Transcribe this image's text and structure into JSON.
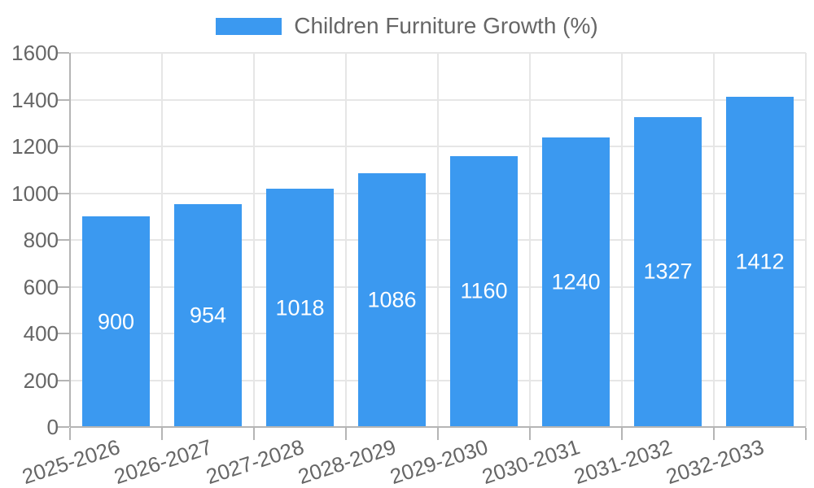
{
  "chart_data": {
    "type": "bar",
    "title": "Children Furniture Growth (%)",
    "categories": [
      "2025-2026",
      "2026-2027",
      "2027-2028",
      "2028-2029",
      "2029-2030",
      "2030-2031",
      "2031-2032",
      "2032-2033"
    ],
    "values": [
      900,
      954,
      1018,
      1086,
      1160,
      1240,
      1327,
      1412
    ],
    "series": [
      {
        "name": "Children Furniture Growth (%)",
        "values": [
          900,
          954,
          1018,
          1086,
          1160,
          1240,
          1327,
          1412
        ]
      }
    ],
    "xlabel": "",
    "ylabel": "",
    "ylim": [
      0,
      1600
    ],
    "ytick_step": 200,
    "y_ticks": [
      0,
      200,
      400,
      600,
      800,
      1000,
      1200,
      1400,
      1600
    ],
    "grid": "on",
    "legend_position": "top",
    "bar_color": "#3B99F0",
    "bar_label_color": "#ffffff",
    "axis_text_color": "#666666",
    "grid_color": "#E6E6E6",
    "axis_line_color": "#B5B5B5"
  }
}
